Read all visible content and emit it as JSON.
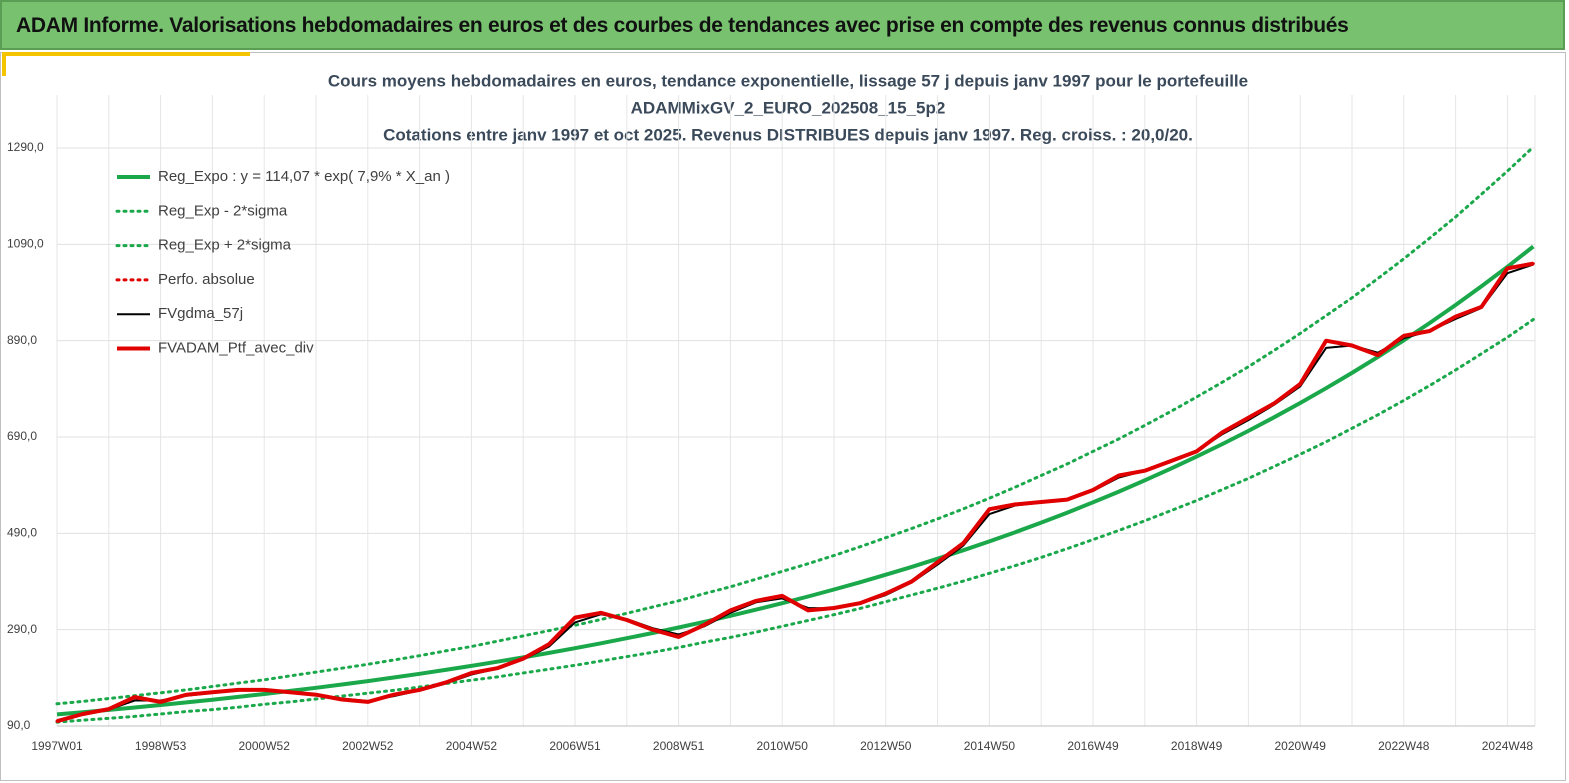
{
  "header": {
    "title": "ADAM Informe. Valorisations hebdomadaires en euros et des courbes de tendances avec prise en compte des revenus connus distribués"
  },
  "chart_data": {
    "type": "line",
    "title_lines": [
      "Cours moyens hebdomadaires  en euros, tendance exponentielle, lissage 57 j depuis janv 1997 pour le portefeuille",
      "ADAMMixGV_2_EURO_202508_15_5p2",
      "Cotations  entre janv 1997 et oct 2025. Revenus DISTRIBUES depuis janv 1997. Reg. croiss. : 20,0/20."
    ],
    "categories": [
      "1997W01",
      null,
      null,
      null,
      "1998W53",
      null,
      null,
      null,
      "2000W52",
      null,
      null,
      null,
      "2002W52",
      null,
      null,
      null,
      "2004W52",
      null,
      null,
      null,
      "2006W51",
      null,
      null,
      null,
      "2008W51",
      null,
      null,
      null,
      "2010W50",
      null,
      null,
      null,
      "2012W50",
      null,
      null,
      null,
      "2014W50",
      null,
      null,
      null,
      "2016W49",
      null,
      null,
      null,
      "2018W49",
      null,
      null,
      null,
      "2020W49",
      null,
      null,
      null,
      "2022W48",
      null,
      null,
      null,
      "2024W48",
      null
    ],
    "ylim": [
      90,
      1400
    ],
    "yticks": [
      {
        "value": 90,
        "label": "90,0"
      },
      {
        "value": 290,
        "label": "290,0"
      },
      {
        "value": 490,
        "label": "490,0"
      },
      {
        "value": 690,
        "label": "690,0"
      },
      {
        "value": 890,
        "label": "890,0"
      },
      {
        "value": 1090,
        "label": "1090,0"
      },
      {
        "value": 1290,
        "label": "1290,0"
      }
    ],
    "grid": true,
    "legend": "top-left",
    "series": [
      {
        "name": "Reg_Expo : y = 114,07 * exp( 7,9% *  X_an )",
        "color": "#1aa84a",
        "style": "solid",
        "width": 4,
        "values": [
          114.1,
          118.7,
          123.5,
          128.4,
          133.6,
          139.0,
          144.6,
          150.4,
          156.5,
          162.8,
          169.4,
          176.2,
          183.3,
          190.7,
          198.4,
          206.4,
          214.7,
          223.4,
          232.4,
          241.7,
          251.5,
          261.6,
          272.2,
          283.1,
          294.5,
          306.4,
          318.8,
          331.6,
          345.0,
          358.9,
          373.4,
          388.4,
          404.1,
          420.4,
          437.3,
          455.0,
          473.3,
          492.4,
          512.2,
          532.9,
          554.4,
          576.7,
          600.0,
          624.2,
          649.3,
          675.5,
          702.7,
          731.1,
          760.5,
          791.2,
          823.1,
          856.3,
          890.8,
          926.7,
          964.1,
          1003.0,
          1043.4,
          1085.5
        ]
      },
      {
        "name": "Reg_Exp - 2*sigma",
        "color": "#1aa84a",
        "style": "dotted",
        "width": 3,
        "values": [
          98,
          102,
          106,
          110,
          115,
          120,
          124,
          129,
          135,
          140,
          146,
          152,
          158,
          164,
          171,
          178,
          185,
          192,
          200,
          208,
          216,
          225,
          234,
          243,
          253,
          264,
          274,
          285,
          297,
          309,
          321,
          334,
          348,
          362,
          376,
          391,
          407,
          423,
          440,
          458,
          477,
          496,
          516,
          537,
          558,
          581,
          604,
          629,
          654,
          680,
          708,
          736,
          766,
          797,
          829,
          863,
          897,
          934
        ]
      },
      {
        "name": "Reg_Exp + 2*sigma",
        "color": "#1aa84a",
        "style": "dotted",
        "width": 3,
        "values": [
          136,
          141,
          147,
          153,
          159,
          165,
          172,
          179,
          186,
          194,
          202,
          210,
          218,
          227,
          236,
          246,
          255,
          266,
          277,
          288,
          299,
          311,
          324,
          337,
          350,
          365,
          379,
          395,
          411,
          427,
          444,
          462,
          481,
          500,
          520,
          541,
          563,
          586,
          610,
          634,
          660,
          686,
          714,
          743,
          773,
          804,
          836,
          870,
          905,
          942,
          979,
          1019,
          1060,
          1103,
          1147,
          1194,
          1242,
          1292
        ]
      },
      {
        "name": "Perfo. absolue",
        "color": "#e00000",
        "style": "dotted",
        "width": 3,
        "values": [
          100,
          115,
          125,
          150,
          140,
          155,
          160,
          165,
          165,
          160,
          155,
          145,
          140,
          155,
          165,
          180,
          200,
          210,
          230,
          260,
          315,
          325,
          310,
          290,
          275,
          300,
          330,
          350,
          360,
          330,
          335,
          345,
          365,
          390,
          430,
          470,
          540,
          550,
          555,
          560,
          580,
          610,
          620,
          640,
          660,
          700,
          730,
          760,
          800,
          890,
          880,
          860,
          900,
          910,
          940,
          960,
          1040,
          1050
        ]
      },
      {
        "name": "FVgdma_57j",
        "color": "#000000",
        "style": "solid",
        "width": 2,
        "values": [
          102,
          113,
          124,
          143,
          143,
          153,
          159,
          164,
          164,
          160,
          154,
          147,
          142,
          152,
          164,
          178,
          197,
          209,
          228,
          255,
          305,
          322,
          312,
          293,
          280,
          297,
          325,
          347,
          355,
          335,
          334,
          344,
          362,
          388,
          425,
          465,
          530,
          548,
          554,
          560,
          578,
          606,
          620,
          638,
          660,
          696,
          725,
          757,
          795,
          875,
          880,
          865,
          895,
          910,
          935,
          958,
          1030,
          1048
        ]
      },
      {
        "name": "FVADAM_Ptf_avec_div",
        "color": "#e00000",
        "style": "solid",
        "width": 4,
        "values": [
          100,
          115,
          125,
          150,
          140,
          155,
          160,
          165,
          165,
          160,
          155,
          145,
          140,
          155,
          165,
          180,
          200,
          210,
          230,
          260,
          315,
          325,
          310,
          290,
          275,
          300,
          330,
          350,
          360,
          330,
          335,
          345,
          365,
          390,
          430,
          470,
          540,
          550,
          555,
          560,
          580,
          610,
          620,
          640,
          660,
          700,
          730,
          760,
          800,
          890,
          880,
          860,
          900,
          910,
          940,
          960,
          1040,
          1050
        ]
      }
    ]
  }
}
